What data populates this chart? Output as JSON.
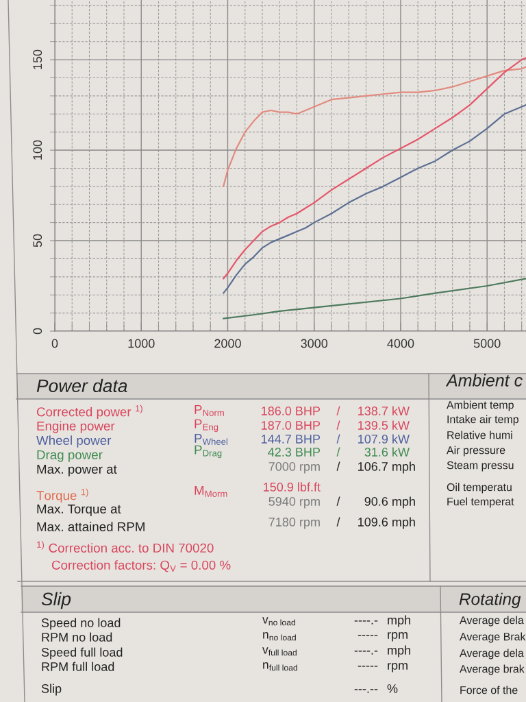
{
  "chart_data": {
    "type": "line",
    "x": [
      1950,
      2000,
      2100,
      2200,
      2300,
      2400,
      2500,
      2600,
      2700,
      2800,
      2900,
      3000,
      3200,
      3400,
      3600,
      3800,
      4000,
      4200,
      4400,
      4600,
      4800,
      5000,
      5200,
      5400,
      5450
    ],
    "series": [
      {
        "color": "#e28a7e",
        "values": [
          80,
          89,
          101,
          110,
          116,
          121,
          122,
          121,
          121,
          120,
          122,
          124,
          128,
          129,
          130,
          131,
          132,
          132,
          133,
          135,
          138,
          141,
          144,
          145,
          146
        ]
      },
      {
        "color": "#e4576a",
        "values": [
          29,
          32,
          39,
          45,
          50,
          55,
          58,
          60,
          63,
          65,
          68,
          71,
          78,
          84,
          90,
          96,
          101,
          106,
          112,
          118,
          125,
          134,
          143,
          150,
          151
        ]
      },
      {
        "color": "#5d6f93",
        "values": [
          21,
          24,
          31,
          37,
          41,
          46,
          49,
          51,
          53,
          55,
          57,
          60,
          65,
          71,
          76,
          80,
          85,
          90,
          94,
          100,
          105,
          112,
          120,
          124,
          125
        ]
      },
      {
        "color": "#4d7a5c",
        "x": [
          1950,
          2300,
          2600,
          3000,
          3400,
          4000,
          4400,
          5000,
          5450
        ],
        "values": [
          7,
          9,
          11,
          13,
          15,
          18,
          21,
          25,
          29
        ]
      }
    ],
    "xlim": [
      0,
      5450
    ],
    "ylim": [
      0,
      183
    ],
    "xticks": [
      0,
      1000,
      2000,
      3000,
      4000,
      5000
    ],
    "yticks": [
      0,
      50,
      100,
      150
    ],
    "grid": true,
    "annotations": [
      "Power data",
      "Corrected power $^{1)}$",
      "Engine power",
      "Wheel power",
      "Drag power",
      "Max. power at",
      "Torque $^{1)}$",
      "Max. Torque at",
      "Max. attained RPM",
      "$^{1)}$ Correction acc. to DIN 70020",
      "Correction factors: Q$_{V}$ = 0.00 %",
      "P$_{Norm}$",
      "P$_{Eng}$",
      "P$_{Wheel}$",
      "P$_{Drag}$",
      "M$_{Morm}$",
      "186.0 BHP",
      "187.0 BHP",
      "144.7 BHP",
      "42.3 BHP",
      "7000 rpm",
      "150.9 lbf.ft",
      "5940 rpm",
      "7180 rpm",
      "/",
      "/",
      "/",
      "/",
      "/",
      "/",
      "/",
      "138.7 kW",
      "139.5 kW",
      "107.9 kW",
      "31.6 kW",
      "106.7 mph",
      "90.6 mph",
      "109.6 mph",
      "Ambient c",
      "Ambient temp",
      "Intake air temp",
      "Relative humi",
      "Air pressure",
      "Steam pressu",
      "Oil temperatu",
      "Fuel temperat",
      "Slip",
      "Speed no load",
      "RPM no load",
      "Speed full load",
      "RPM full load",
      "Slip",
      "v$_{no load}$",
      "n$_{no load}$",
      "v$_{full load}$",
      "n$_{full load}$",
      "----.-",
      "-----",
      "----.-",
      "-----",
      "---.--",
      "mph",
      "rpm",
      "mph",
      "rpm",
      "%",
      "Rotating",
      "Average dela",
      "Average Brak",
      "Average dela",
      "Average brak",
      "Force of the"
    ]
  }
}
